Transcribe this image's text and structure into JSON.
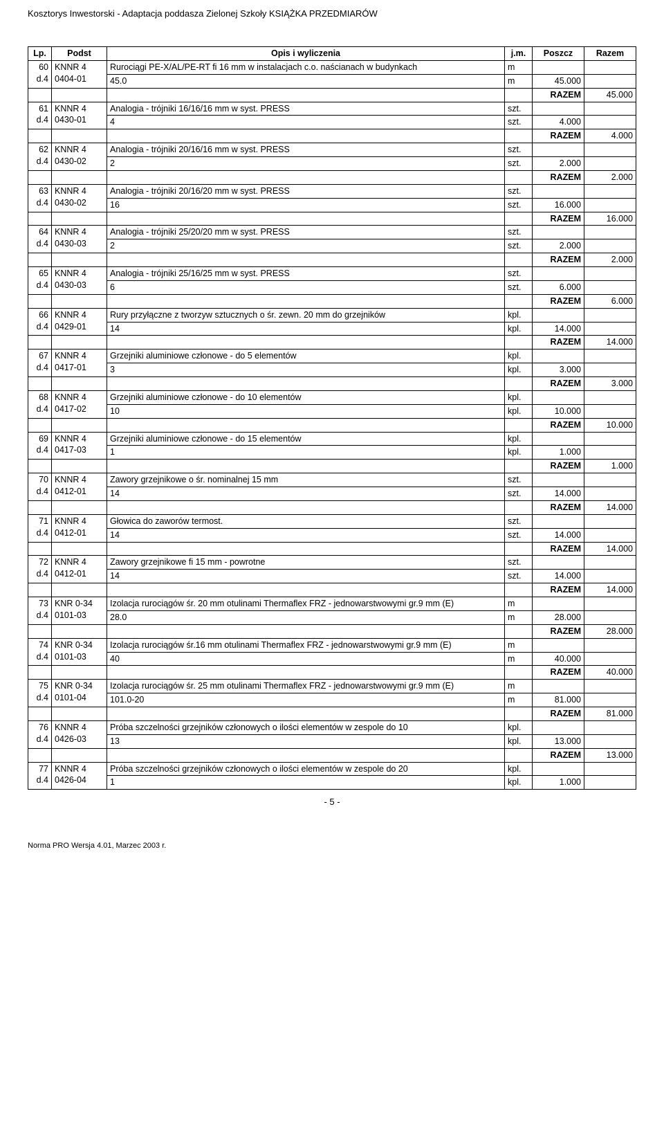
{
  "header": {
    "left": "Kosztorys Inwestorski - Adaptacja poddasza Zielonej Szkoły",
    "right": "KSIĄŻKA PRZEDMIARÓW"
  },
  "table": {
    "headers": {
      "lp": "Lp.",
      "podst": "Podst",
      "opis": "Opis i wyliczenia",
      "jm": "j.m.",
      "poszcz": "Poszcz",
      "razem": "Razem"
    },
    "razem_label": "RAZEM",
    "items": [
      {
        "lp": "60",
        "dref": "d.4",
        "code": "KNNR 4\n0404-01",
        "desc": "Rurociągi PE-X/AL/PE-RT fi 16 mm w instalacjach c.o. naścianach w budynkach",
        "jm": "m",
        "calc": [
          {
            "expr": "45.0",
            "jm": "m",
            "val": "45.000"
          }
        ],
        "razem": "45.000"
      },
      {
        "lp": "61",
        "dref": "d.4",
        "code": "KNNR 4\n0430-01",
        "desc": "Analogia - trójniki 16/16/16 mm w syst. PRESS",
        "jm": "szt.",
        "calc": [
          {
            "expr": "4",
            "jm": "szt.",
            "val": "4.000"
          }
        ],
        "razem": "4.000"
      },
      {
        "lp": "62",
        "dref": "d.4",
        "code": "KNNR 4\n0430-02",
        "desc": "Analogia - trójniki 20/16/16 mm w syst. PRESS",
        "jm": "szt.",
        "calc": [
          {
            "expr": "2",
            "jm": "szt.",
            "val": "2.000"
          }
        ],
        "razem": "2.000"
      },
      {
        "lp": "63",
        "dref": "d.4",
        "code": "KNNR 4\n0430-02",
        "desc": "Analogia - trójniki 20/16/20 mm w syst. PRESS",
        "jm": "szt.",
        "calc": [
          {
            "expr": "16",
            "jm": "szt.",
            "val": "16.000"
          }
        ],
        "razem": "16.000"
      },
      {
        "lp": "64",
        "dref": "d.4",
        "code": "KNNR 4\n0430-03",
        "desc": "Analogia - trójniki 25/20/20 mm w syst. PRESS",
        "jm": "szt.",
        "calc": [
          {
            "expr": "2",
            "jm": "szt.",
            "val": "2.000"
          }
        ],
        "razem": "2.000"
      },
      {
        "lp": "65",
        "dref": "d.4",
        "code": "KNNR 4\n0430-03",
        "desc": "Analogia - trójniki 25/16/25 mm w syst. PRESS",
        "jm": "szt.",
        "calc": [
          {
            "expr": "6",
            "jm": "szt.",
            "val": "6.000"
          }
        ],
        "razem": "6.000"
      },
      {
        "lp": "66",
        "dref": "d.4",
        "code": "KNNR 4\n0429-01",
        "desc": "Rury przyłączne z tworzyw sztucznych o śr. zewn. 20 mm do grzejników",
        "jm": "kpl.",
        "calc": [
          {
            "expr": "14",
            "jm": "kpl.",
            "val": "14.000"
          }
        ],
        "razem": "14.000"
      },
      {
        "lp": "67",
        "dref": "d.4",
        "code": "KNNR 4\n0417-01",
        "desc": "Grzejniki aluminiowe członowe - do 5 elementów",
        "jm": "kpl.",
        "calc": [
          {
            "expr": "3",
            "jm": "kpl.",
            "val": "3.000"
          }
        ],
        "razem": "3.000"
      },
      {
        "lp": "68",
        "dref": "d.4",
        "code": "KNNR 4\n0417-02",
        "desc": "Grzejniki aluminiowe członowe - do 10 elementów",
        "jm": "kpl.",
        "calc": [
          {
            "expr": "10",
            "jm": "kpl.",
            "val": "10.000"
          }
        ],
        "razem": "10.000"
      },
      {
        "lp": "69",
        "dref": "d.4",
        "code": "KNNR 4\n0417-03",
        "desc": "Grzejniki aluminiowe członowe - do 15 elementów",
        "jm": "kpl.",
        "calc": [
          {
            "expr": "1",
            "jm": "kpl.",
            "val": "1.000"
          }
        ],
        "razem": "1.000"
      },
      {
        "lp": "70",
        "dref": "d.4",
        "code": "KNNR 4\n0412-01",
        "desc": "Zawory grzejnikowe o śr. nominalnej 15 mm",
        "jm": "szt.",
        "calc": [
          {
            "expr": "14",
            "jm": "szt.",
            "val": "14.000"
          }
        ],
        "razem": "14.000"
      },
      {
        "lp": "71",
        "dref": "d.4",
        "code": "KNNR 4\n0412-01",
        "desc": "Głowica do zaworów termost.",
        "jm": "szt.",
        "calc": [
          {
            "expr": "14",
            "jm": "szt.",
            "val": "14.000"
          }
        ],
        "razem": "14.000"
      },
      {
        "lp": "72",
        "dref": "d.4",
        "code": "KNNR 4\n0412-01",
        "desc": "Zawory grzejnikowe fi 15 mm - powrotne",
        "jm": "szt.",
        "calc": [
          {
            "expr": "14",
            "jm": "szt.",
            "val": "14.000"
          }
        ],
        "razem": "14.000"
      },
      {
        "lp": "73",
        "dref": "d.4",
        "code": "KNR 0-34\n0101-03",
        "desc": "Izolacja rurociągów śr. 20 mm otulinami Thermaflex FRZ - jednowarstwowymi gr.9 mm (E)",
        "jm": "m",
        "calc": [
          {
            "expr": "28.0",
            "jm": "m",
            "val": "28.000"
          }
        ],
        "razem": "28.000"
      },
      {
        "lp": "74",
        "dref": "d.4",
        "code": "KNR 0-34\n0101-03",
        "desc": "Izolacja rurociągów śr.16 mm otulinami Thermaflex FRZ - jednowarstwowymi gr.9 mm (E)",
        "jm": "m",
        "calc": [
          {
            "expr": "40",
            "jm": "m",
            "val": "40.000"
          }
        ],
        "razem": "40.000"
      },
      {
        "lp": "75",
        "dref": "d.4",
        "code": "KNR 0-34\n0101-04",
        "desc": "Izolacja rurociągów śr. 25 mm otulinami Thermaflex FRZ - jednowarstwowymi gr.9 mm (E)",
        "jm": "m",
        "calc": [
          {
            "expr": "101.0-20",
            "jm": "m",
            "val": "81.000"
          }
        ],
        "razem": "81.000"
      },
      {
        "lp": "76",
        "dref": "d.4",
        "code": "KNNR 4\n0426-03",
        "desc": "Próba szczelności grzejników członowych o ilości elementów w zespole do 10",
        "jm": "kpl.",
        "calc": [
          {
            "expr": "13",
            "jm": "kpl.",
            "val": "13.000"
          }
        ],
        "razem": "13.000"
      },
      {
        "lp": "77",
        "dref": "d.4",
        "code": "KNNR 4\n0426-04",
        "desc": "Próba szczelności grzejników członowych o ilości elementów w zespole do 20",
        "jm": "kpl.",
        "calc": [
          {
            "expr": "1",
            "jm": "kpl.",
            "val": "1.000"
          }
        ],
        "razem": null
      }
    ]
  },
  "page_number": "- 5 -",
  "footer": "Norma PRO Wersja 4.01, Marzec 2003 r."
}
